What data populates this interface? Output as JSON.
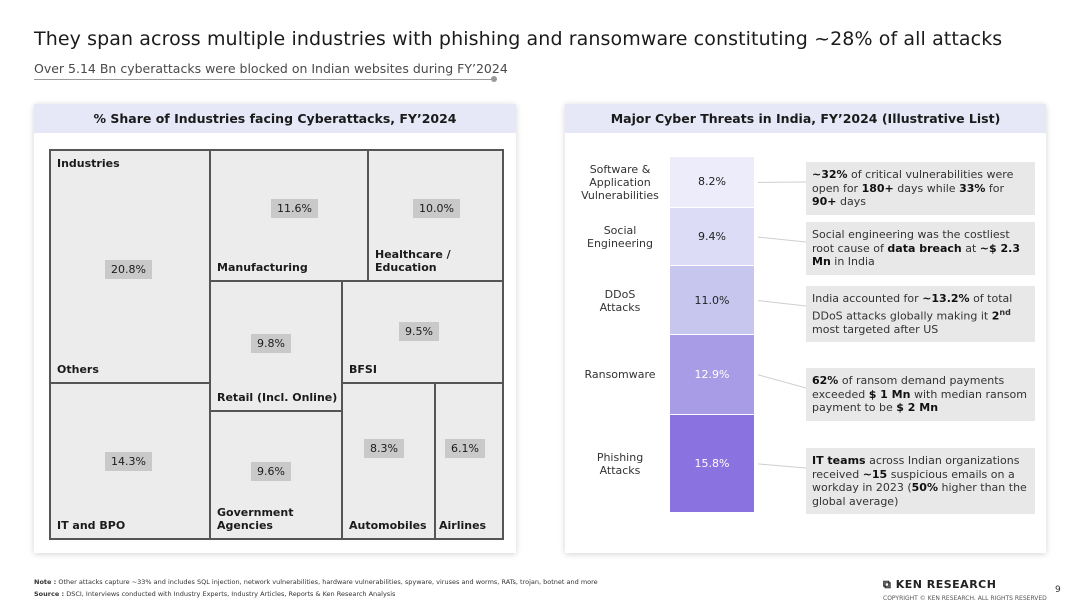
{
  "page": {
    "title": "They span across multiple industries with phishing and ransomware constituting ~28% of all attacks",
    "subtitle": "Over 5.14 Bn cyberattacks were blocked on Indian websites during FY’2024",
    "page_number": "9"
  },
  "footer": {
    "note_label": "Note :",
    "note_text": "Other attacks capture ~33% and includes SQL injection, network vulnerabilities, hardware vulnerabilities, spyware, viruses and worms, RATs, trojan, botnet and more",
    "source_label": "Source :",
    "source_text": "DSCI, Interviews conducted with Industry Experts, Industry Articles, Reports & Ken Research Analysis",
    "logo": "KEN RESEARCH",
    "copyright": "COPYRIGHT © KEN RESEARCH. ALL RIGHTS RESERVED"
  },
  "chart_data": [
    {
      "type": "treemap",
      "title": "% Share of Industries facing Cyberattacks, FY’2024",
      "header_label": "Industries",
      "categories": [
        "Others",
        "IT and BPO",
        "Manufacturing",
        "Healthcare / Education",
        "Retail (Incl. Online)",
        "BFSI",
        "Government Agencies",
        "Automobiles",
        "Airlines"
      ],
      "values": [
        20.8,
        14.3,
        11.6,
        10.0,
        9.8,
        9.5,
        9.6,
        8.3,
        6.1
      ],
      "value_labels": [
        "20.8%",
        "14.3%",
        "11.6%",
        "10.0%",
        "9.8%",
        "9.5%",
        "9.6%",
        "8.3%",
        "6.1%"
      ]
    },
    {
      "type": "bar",
      "orientation": "stacked",
      "title": "Major Cyber Threats in India, FY’2024 (Illustrative List)",
      "categories": [
        "Software & Application Vulnerabilities",
        "Social Engineering",
        "DDoS Attacks",
        "Ransomware",
        "Phishing Attacks"
      ],
      "category_lines": [
        [
          "Software &",
          "Application",
          "Vulnerabilities"
        ],
        [
          "Social",
          "Engineering"
        ],
        [
          "DDoS",
          "Attacks"
        ],
        [
          "Ransomware"
        ],
        [
          "Phishing",
          "Attacks"
        ]
      ],
      "values": [
        8.2,
        9.4,
        11.0,
        12.9,
        15.8
      ],
      "value_labels": [
        "8.2%",
        "9.4%",
        "11.0%",
        "12.9%",
        "15.8%"
      ],
      "colors": [
        "#ececfb",
        "#dcdcf6",
        "#c6c6ef",
        "#a89ce6",
        "#8a72e0"
      ]
    }
  ],
  "notes": [
    [
      {
        "t": "~32%",
        "b": true
      },
      {
        "t": " of critical vulnerabilities were open for "
      },
      {
        "t": "180+",
        "b": true
      },
      {
        "t": " days while "
      },
      {
        "t": "33%",
        "b": true
      },
      {
        "t": " for "
      },
      {
        "t": "90+",
        "b": true
      },
      {
        "t": " days"
      }
    ],
    [
      {
        "t": "Social engineering was the costliest root cause of "
      },
      {
        "t": "data breach",
        "b": true
      },
      {
        "t": " at "
      },
      {
        "t": "~$ 2.3 Mn",
        "b": true
      },
      {
        "t": " in India"
      }
    ],
    [
      {
        "t": "India accounted for "
      },
      {
        "t": "~13.2%",
        "b": true
      },
      {
        "t": " of total DDoS attacks globally making it "
      },
      {
        "t": "2",
        "b": true
      },
      {
        "t": "nd",
        "b": true,
        "sup": true
      },
      {
        "t": " most targeted after US"
      }
    ],
    [
      {
        "t": "62%",
        "b": true
      },
      {
        "t": " of ransom demand payments exceeded "
      },
      {
        "t": "$ 1 Mn",
        "b": true
      },
      {
        "t": " with median ransom payment to be "
      },
      {
        "t": "$ 2 Mn",
        "b": true
      }
    ],
    [
      {
        "t": "IT teams",
        "b": true
      },
      {
        "t": " across Indian organizations received "
      },
      {
        "t": "~15",
        "b": true
      },
      {
        "t": " suspicious emails on a workday in 2023 ("
      },
      {
        "t": "50%",
        "b": true
      },
      {
        "t": " higher than the global average)"
      }
    ]
  ]
}
